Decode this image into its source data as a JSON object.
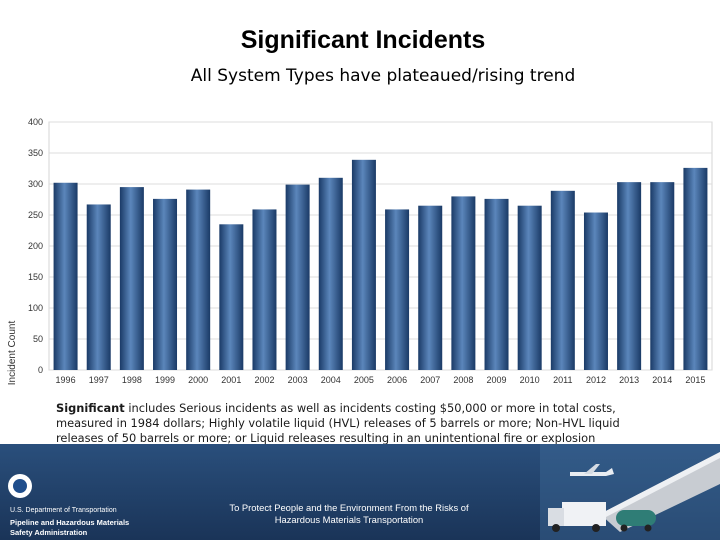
{
  "header": {
    "title": "Significant Incidents",
    "subtitle": "All System Types have plateaued/rising trend"
  },
  "chart_data": {
    "type": "bar",
    "ylabel": "Incident Count",
    "ylim": [
      0,
      400
    ],
    "yticks": [
      "0",
      "50",
      "100",
      "150",
      "200",
      "250",
      "300",
      "350",
      "400"
    ],
    "categories": [
      "1996",
      "1997",
      "1998",
      "1999",
      "2000",
      "2001",
      "2002",
      "2003",
      "2004",
      "2005",
      "2006",
      "2007",
      "2008",
      "2009",
      "2010",
      "2011",
      "2012",
      "2013",
      "2014",
      "2015"
    ],
    "values": [
      302,
      267,
      295,
      276,
      291,
      235,
      259,
      299,
      310,
      339,
      259,
      265,
      280,
      276,
      265,
      289,
      254,
      303,
      303,
      326
    ],
    "bar_color": "#1d3f6e",
    "bar_highlight": "#5b86bb",
    "grid": true,
    "legend": "none"
  },
  "note": {
    "bold": "Significant",
    "text": " includes Serious incidents as well as incidents costing $50,000 or more in total costs, measured in 1984 dollars; Highly volatile liquid (HVL) releases of 5 barrels or more; Non-HVL liquid releases of 50 barrels or more; or Liquid releases resulting in an unintentional fire or explosion"
  },
  "footer": {
    "department": "U.S. Department of Transportation",
    "agency_line1": "Pipeline and Hazardous Materials",
    "agency_line2": "Safety Administration",
    "mission_line1": "To Protect People and the Environment From the Risks of",
    "mission_line2": "Hazardous Materials Transportation",
    "icons": [
      "dot-logo-icon",
      "airplane-icon",
      "truck-icon",
      "tank-car-icon",
      "pipeline-icon"
    ]
  }
}
